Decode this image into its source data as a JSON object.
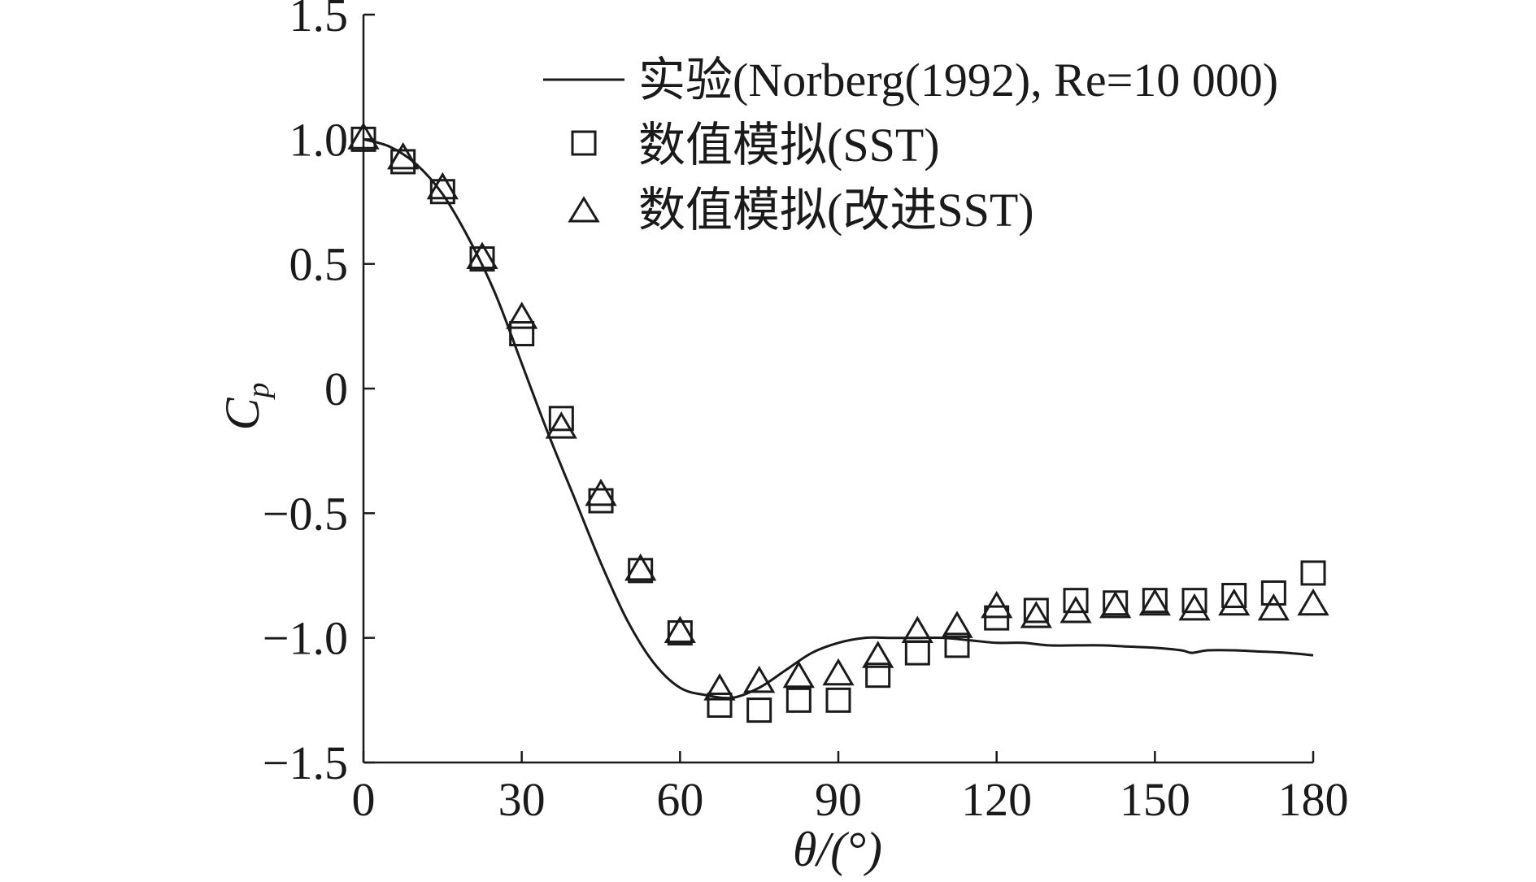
{
  "chart_data": {
    "type": "line",
    "title": "",
    "xlabel": "θ/(°)",
    "ylabel": "C",
    "ylabel_sub": "p",
    "xlim": [
      0,
      180
    ],
    "ylim": [
      -1.5,
      1.5
    ],
    "x_ticks": [
      0,
      30,
      60,
      90,
      120,
      150,
      180
    ],
    "x_tick_labels": [
      "0",
      "30",
      "60",
      "90",
      "120",
      "150",
      "180"
    ],
    "y_ticks": [
      1.5,
      1.0,
      0.5,
      0,
      -0.5,
      -1.0,
      -1.5
    ],
    "y_tick_labels": [
      "1.5",
      "1.0",
      "0.5",
      "0",
      "−0.5",
      "−1.0",
      "−1.5"
    ],
    "grid": false,
    "legend_position": "top-right",
    "series": [
      {
        "name": "实验(Norberg(1992), Re=10 000)",
        "marker": "line",
        "x": [
          0,
          5,
          10,
          15,
          20,
          25,
          30,
          35,
          40,
          45,
          50,
          55,
          60,
          65,
          70,
          75,
          80,
          85,
          90,
          95,
          100,
          105,
          110,
          115,
          120,
          125,
          130,
          135,
          140,
          145,
          150,
          155,
          157,
          160,
          165,
          170,
          175,
          180
        ],
        "y": [
          1.0,
          0.97,
          0.9,
          0.78,
          0.6,
          0.38,
          0.1,
          -0.18,
          -0.44,
          -0.7,
          -0.93,
          -1.1,
          -1.2,
          -1.23,
          -1.24,
          -1.2,
          -1.13,
          -1.06,
          -1.02,
          -1.0,
          -1.0,
          -1.0,
          -1.0,
          -1.01,
          -1.02,
          -1.02,
          -1.03,
          -1.03,
          -1.03,
          -1.035,
          -1.04,
          -1.05,
          -1.06,
          -1.05,
          -1.05,
          -1.055,
          -1.06,
          -1.07
        ]
      },
      {
        "name": "数值模拟(SST)",
        "marker": "square",
        "x": [
          0,
          7.5,
          15,
          22.5,
          30,
          37.5,
          45,
          52.5,
          60,
          67.5,
          75,
          82.5,
          90,
          97.5,
          105,
          112.5,
          120,
          127.5,
          135,
          142.5,
          150,
          157.5,
          165,
          172.5,
          180
        ],
        "y": [
          1.0,
          0.91,
          0.79,
          0.52,
          0.22,
          -0.12,
          -0.45,
          -0.73,
          -0.98,
          -1.27,
          -1.29,
          -1.25,
          -1.25,
          -1.15,
          -1.06,
          -1.03,
          -0.92,
          -0.89,
          -0.85,
          -0.86,
          -0.85,
          -0.85,
          -0.83,
          -0.82,
          -0.74
        ]
      },
      {
        "name": "数值模拟(改进SST)",
        "marker": "triangle",
        "x": [
          0,
          7.5,
          15,
          22.5,
          30,
          37.5,
          45,
          52.5,
          60,
          67.5,
          75,
          82.5,
          90,
          97.5,
          105,
          112.5,
          120,
          127.5,
          135,
          142.5,
          150,
          157.5,
          165,
          172.5,
          180
        ],
        "y": [
          1.0,
          0.92,
          0.8,
          0.52,
          0.28,
          -0.16,
          -0.43,
          -0.73,
          -0.98,
          -1.21,
          -1.18,
          -1.16,
          -1.15,
          -1.08,
          -0.98,
          -0.96,
          -0.88,
          -0.92,
          -0.9,
          -0.88,
          -0.87,
          -0.89,
          -0.87,
          -0.89,
          -0.87
        ]
      }
    ]
  }
}
